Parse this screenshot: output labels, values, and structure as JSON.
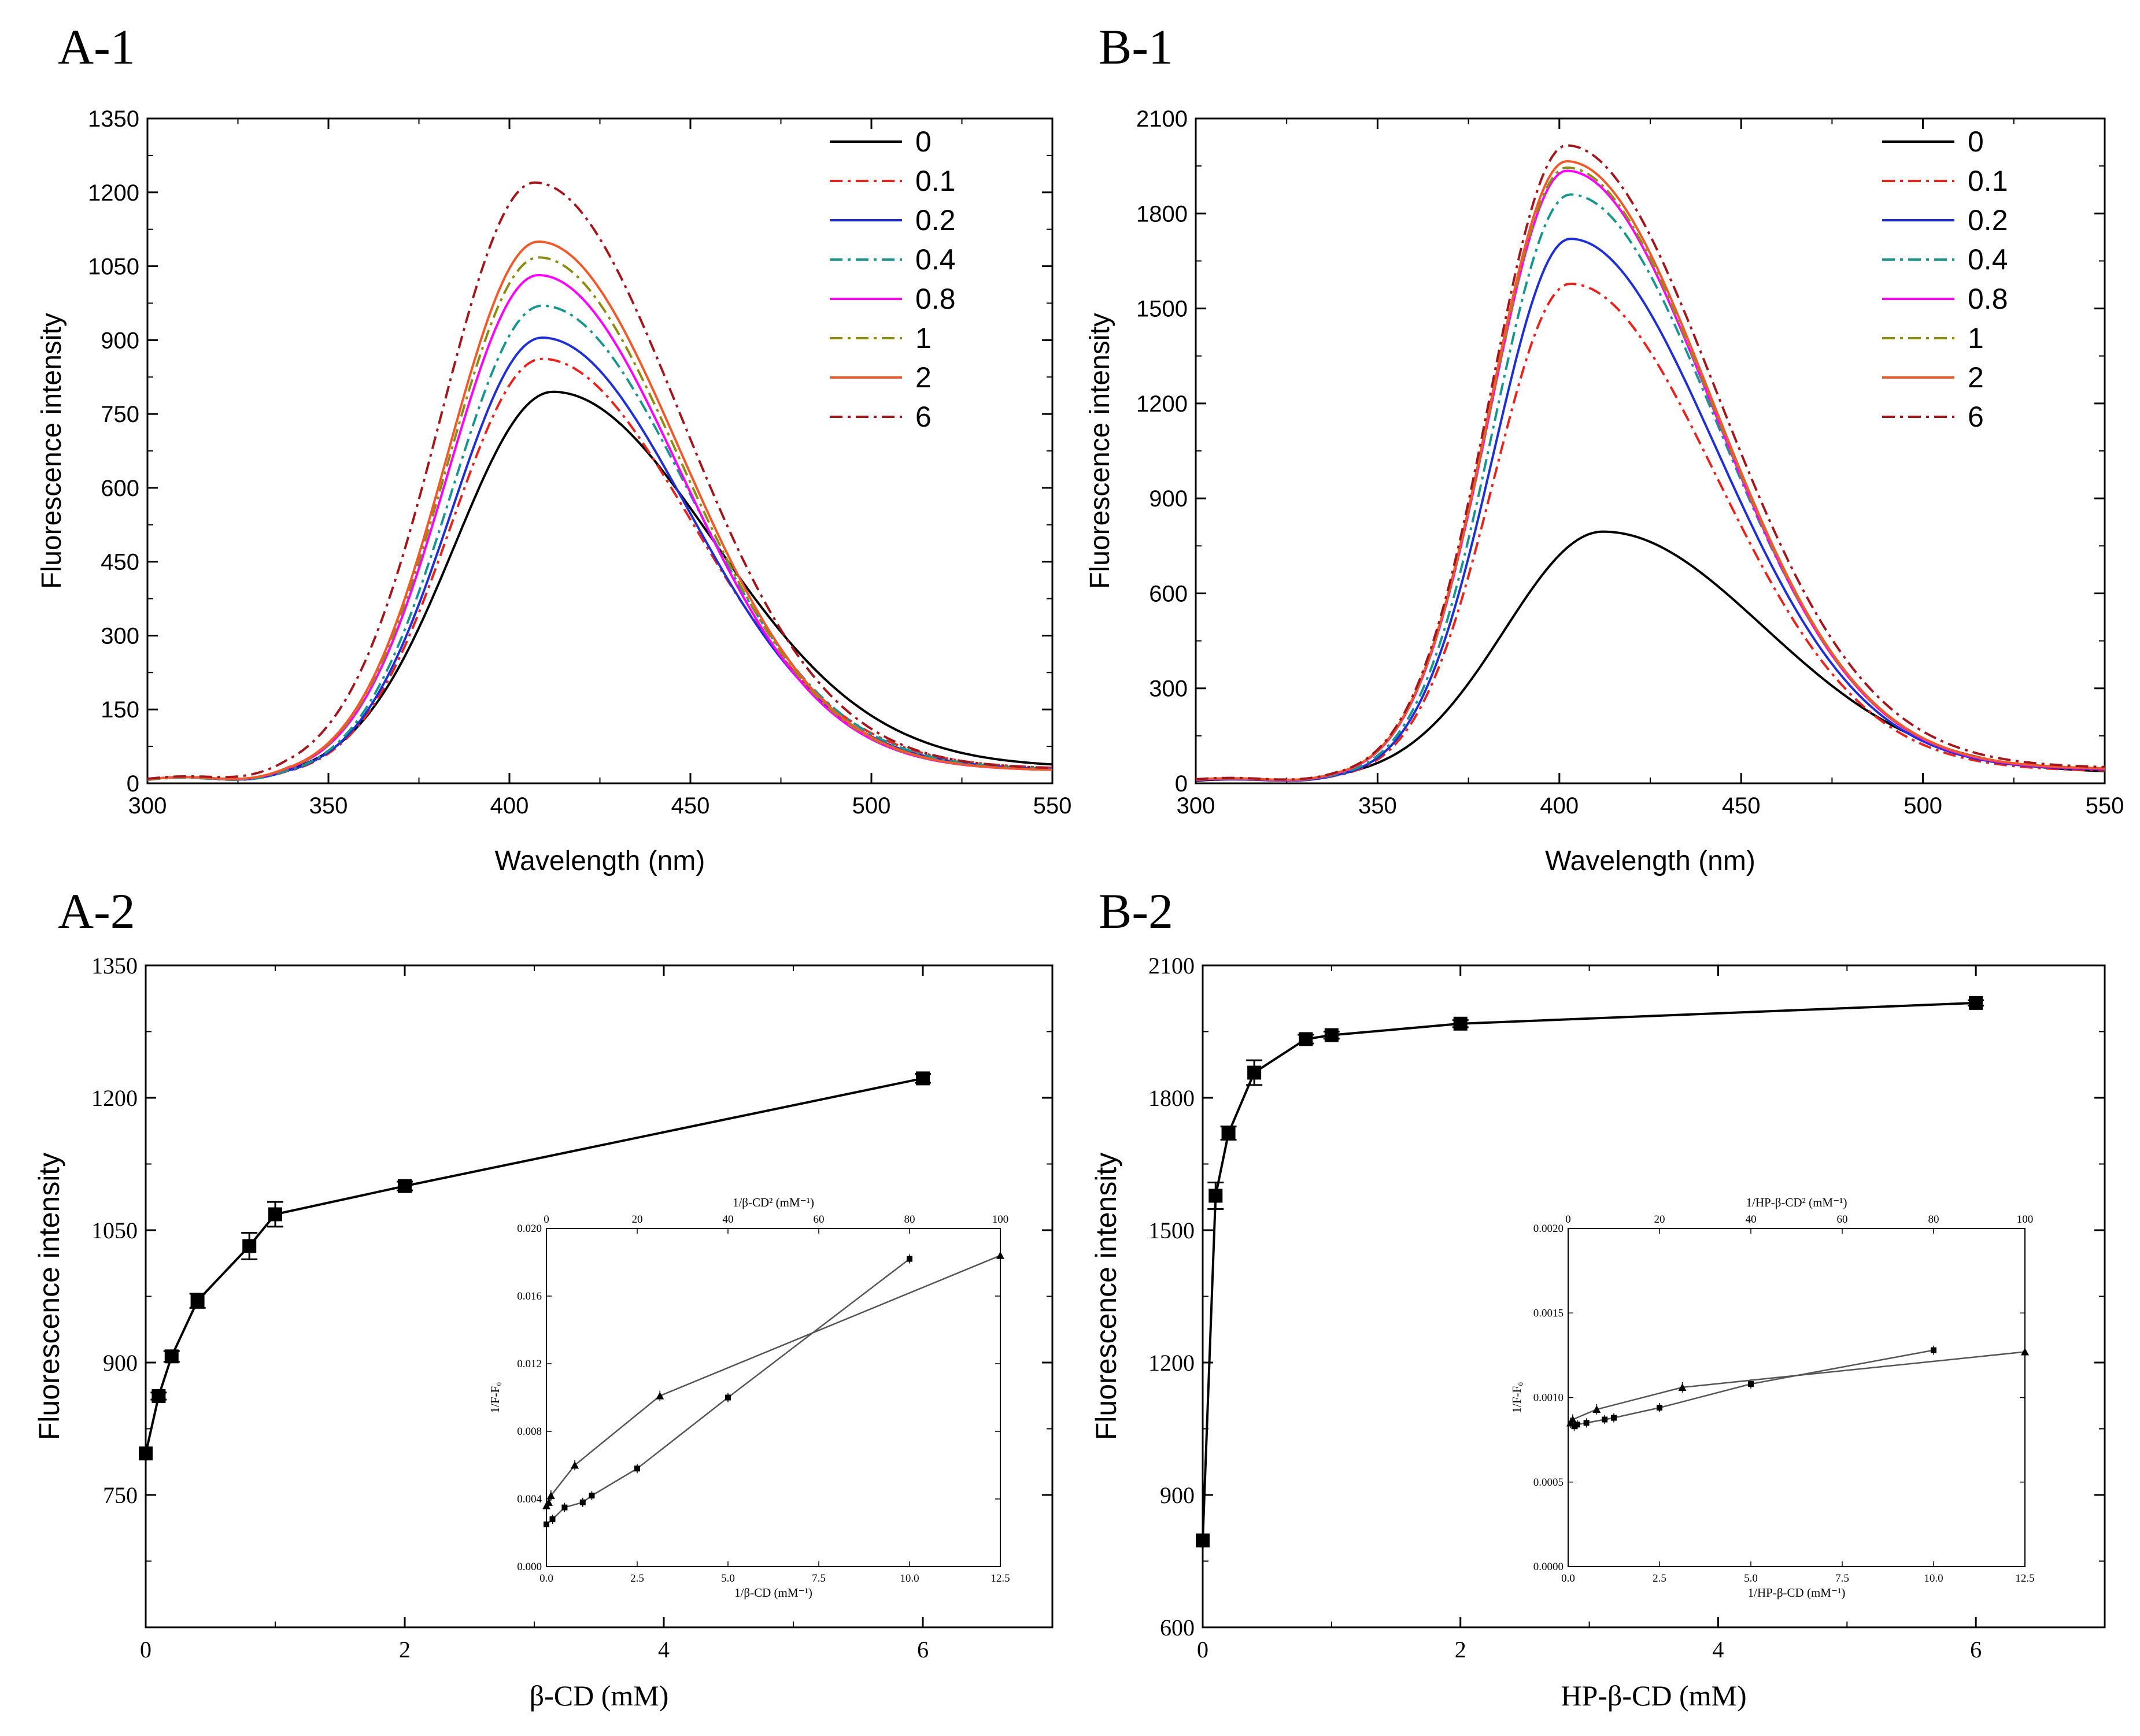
{
  "figure": {
    "panels": {
      "a1": "A-1",
      "b1": "B-1",
      "a2": "A-2",
      "b2": "B-2"
    }
  },
  "chart_data": [
    {
      "id": "a1",
      "type": "line",
      "title": "A-1",
      "xlabel": "Wavelength (nm)",
      "ylabel": "Fluorescence intensity",
      "xlim": [
        300,
        550
      ],
      "ylim": [
        0,
        1350
      ],
      "xticks": [
        300,
        350,
        400,
        450,
        500,
        550
      ],
      "yticks": [
        0,
        150,
        300,
        450,
        600,
        750,
        900,
        1050,
        1200,
        1350
      ],
      "legend_position": "top-right",
      "series": [
        {
          "name": "0",
          "color": "#000000",
          "dash": "solid",
          "peak_x": 412,
          "peak": 795,
          "width_left": 27,
          "width_right": 44,
          "baseline": 8,
          "tail": 20
        },
        {
          "name": "0.1",
          "color": "#e8231c",
          "dash": "dashdot",
          "peak_x": 409,
          "peak": 862,
          "width_left": 25,
          "width_right": 41,
          "baseline": 8,
          "tail": 18
        },
        {
          "name": "0.2",
          "color": "#1f2fd6",
          "dash": "solid",
          "peak_x": 409,
          "peak": 905,
          "width_left": 25,
          "width_right": 40,
          "baseline": 8,
          "tail": 17
        },
        {
          "name": "0.4",
          "color": "#17968f",
          "dash": "dashdot",
          "peak_x": 409,
          "peak": 970,
          "width_left": 25,
          "width_right": 40,
          "baseline": 7,
          "tail": 17
        },
        {
          "name": "0.8",
          "color": "#ff00ff",
          "dash": "solid",
          "peak_x": 408,
          "peak": 1032,
          "width_left": 25,
          "width_right": 39,
          "baseline": 8,
          "tail": 16
        },
        {
          "name": "1",
          "color": "#8c8c12",
          "dash": "dashdot",
          "peak_x": 408,
          "peak": 1068,
          "width_left": 25,
          "width_right": 39,
          "baseline": 8,
          "tail": 16
        },
        {
          "name": "2",
          "color": "#f05a2a",
          "dash": "solid",
          "peak_x": 408,
          "peak": 1100,
          "width_left": 25,
          "width_right": 39,
          "baseline": 8,
          "tail": 16
        },
        {
          "name": "6",
          "color": "#a3161c",
          "dash": "dashdot",
          "peak_x": 407,
          "peak": 1220,
          "width_left": 26,
          "width_right": 40,
          "baseline": 9,
          "tail": 18
        }
      ]
    },
    {
      "id": "b1",
      "type": "line",
      "title": "B-1",
      "xlabel": "Wavelength (nm)",
      "ylabel": "Fluorescence intensity",
      "xlim": [
        300,
        550
      ],
      "ylim": [
        0,
        2100
      ],
      "xticks": [
        300,
        350,
        400,
        450,
        500,
        550
      ],
      "yticks": [
        0,
        300,
        600,
        900,
        1200,
        1500,
        1800,
        2100
      ],
      "legend_position": "top-right",
      "series": [
        {
          "name": "0",
          "color": "#000000",
          "dash": "solid",
          "peak_x": 412,
          "peak": 795,
          "width_left": 27,
          "width_right": 44,
          "baseline": 8,
          "tail": 20
        },
        {
          "name": "0.1",
          "color": "#e8231c",
          "dash": "dashdot",
          "peak_x": 403,
          "peak": 1578,
          "width_left": 21,
          "width_right": 40,
          "baseline": 10,
          "tail": 24
        },
        {
          "name": "0.2",
          "color": "#1f2fd6",
          "dash": "solid",
          "peak_x": 403,
          "peak": 1720,
          "width_left": 21,
          "width_right": 40,
          "baseline": 10,
          "tail": 26
        },
        {
          "name": "0.4",
          "color": "#17968f",
          "dash": "dashdot",
          "peak_x": 403,
          "peak": 1860,
          "width_left": 21,
          "width_right": 40,
          "baseline": 11,
          "tail": 27
        },
        {
          "name": "0.8",
          "color": "#ff00ff",
          "dash": "solid",
          "peak_x": 402,
          "peak": 1935,
          "width_left": 21,
          "width_right": 40,
          "baseline": 11,
          "tail": 27
        },
        {
          "name": "1",
          "color": "#8c8c12",
          "dash": "dashdot",
          "peak_x": 402,
          "peak": 1945,
          "width_left": 21,
          "width_right": 40,
          "baseline": 12,
          "tail": 28
        },
        {
          "name": "2",
          "color": "#f05a2a",
          "dash": "solid",
          "peak_x": 402,
          "peak": 1965,
          "width_left": 21,
          "width_right": 40,
          "baseline": 12,
          "tail": 28
        },
        {
          "name": "6",
          "color": "#a3161c",
          "dash": "dashdot",
          "peak_x": 402,
          "peak": 2015,
          "width_left": 21,
          "width_right": 41,
          "baseline": 13,
          "tail": 30
        }
      ]
    },
    {
      "id": "a2",
      "type": "line",
      "title": "A-2",
      "xlabel": "β-CD (mM)",
      "ylabel": "Fluorescence intensity",
      "xlim": [
        0,
        7
      ],
      "ylim": [
        600,
        1350
      ],
      "xticks": [
        0,
        2,
        4,
        6
      ],
      "yticks": [
        750,
        900,
        1050,
        1200,
        1350
      ],
      "x": [
        0,
        0.1,
        0.2,
        0.4,
        0.8,
        1,
        2,
        6
      ],
      "values": [
        797,
        862,
        907,
        970,
        1032,
        1068,
        1100,
        1222
      ],
      "errors": [
        0,
        4,
        6,
        8,
        15,
        14,
        5,
        5
      ],
      "inset": {
        "xlabel": "1/β-CD (mM⁻¹)",
        "x2label": "1/β-CD² (mM⁻¹)",
        "ylabel": "1/F-F₀",
        "xlim": [
          0,
          12.5
        ],
        "x2lim": [
          0,
          100
        ],
        "ylim": [
          0,
          0.02
        ],
        "xticks": [
          "0.0",
          "2.5",
          "5.0",
          "7.5",
          "10.0",
          "12.5"
        ],
        "x2ticks": [
          "0",
          "20",
          "40",
          "60",
          "80",
          "100"
        ],
        "yticks": [
          "0.000",
          "0.004",
          "0.008",
          "0.012",
          "0.016",
          "0.020"
        ],
        "series_circle": {
          "x": [
            0,
            0.167,
            0.5,
            1,
            1.25,
            2.5,
            5,
            10
          ],
          "y": [
            0.0025,
            0.0028,
            0.0035,
            0.0038,
            0.0042,
            0.0058,
            0.01,
            0.0182
          ]
        },
        "series_triangle": {
          "x2": [
            0,
            0.5,
            1,
            6.25,
            25,
            100
          ],
          "y": [
            0.0036,
            0.0038,
            0.0042,
            0.006,
            0.0101,
            0.0184
          ]
        }
      }
    },
    {
      "id": "b2",
      "type": "line",
      "title": "B-2",
      "xlabel": "HP-β-CD (mM)",
      "ylabel": "Fluorescence intensity",
      "xlim": [
        0,
        7
      ],
      "ylim": [
        600,
        2100
      ],
      "xticks": [
        0,
        2,
        4,
        6
      ],
      "yticks": [
        600,
        900,
        1200,
        1500,
        1800,
        2100
      ],
      "x": [
        0,
        0.1,
        0.2,
        0.4,
        0.8,
        1,
        2,
        6
      ],
      "values": [
        797,
        1578,
        1720,
        1857,
        1933,
        1942,
        1968,
        2015
      ],
      "errors": [
        0,
        30,
        15,
        28,
        10,
        8,
        8,
        6
      ],
      "inset": {
        "xlabel": "1/HP-β-CD (mM⁻¹)",
        "x2label": "1/HP-β-CD² (mM⁻¹)",
        "ylabel": "1/F-F₀",
        "xlim": [
          0,
          12.5
        ],
        "x2lim": [
          0,
          100
        ],
        "ylim": [
          0,
          0.002
        ],
        "xticks": [
          "0.0",
          "2.5",
          "5.0",
          "7.5",
          "10.0",
          "12.5"
        ],
        "x2ticks": [
          "0",
          "20",
          "40",
          "60",
          "80",
          "100"
        ],
        "yticks": [
          "0.0000",
          "0.0005",
          "0.0010",
          "0.0015",
          "0.0020"
        ],
        "series_circle": {
          "x": [
            0.167,
            0.25,
            0.5,
            1,
            1.25,
            2.5,
            5,
            10
          ],
          "y": [
            0.00083,
            0.00084,
            0.00085,
            0.00087,
            0.00088,
            0.00094,
            0.00108,
            0.00128
          ]
        },
        "series_triangle": {
          "x2": [
            0.5,
            1,
            6.25,
            25,
            100
          ],
          "y": [
            0.00085,
            0.00087,
            0.00093,
            0.00106,
            0.00127
          ]
        }
      }
    }
  ]
}
